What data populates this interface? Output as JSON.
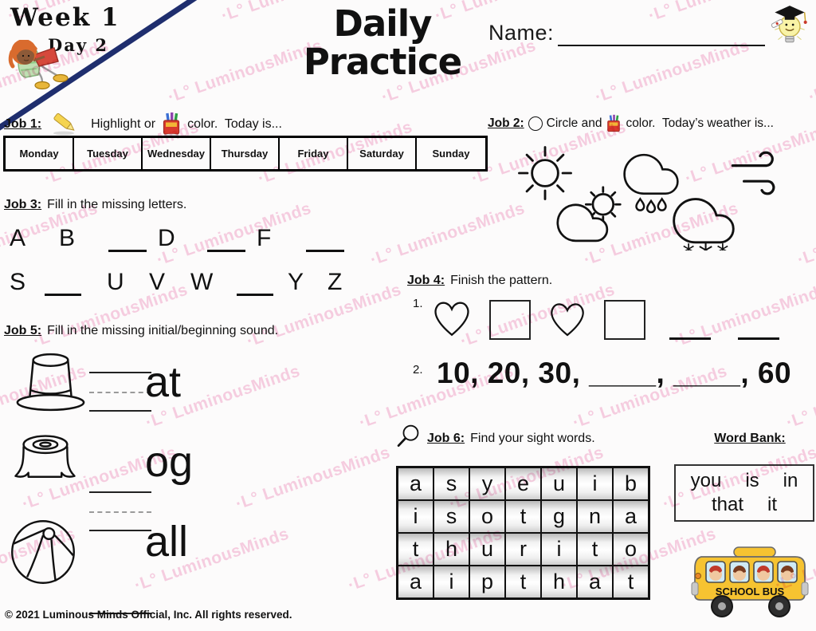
{
  "page": {
    "week": "Week 1",
    "day": "Day 2",
    "title_line1": "Daily",
    "title_line2": "Practice",
    "name_label": "Name:",
    "watermark": "·L° LuminousMinds",
    "copyright": "© 2021 Luminous Minds Official, Inc. All rights reserved."
  },
  "icons": {
    "highlighter": "highlighter-icon",
    "crayon_box": "crayon-box-icon",
    "circle": "circle-icon",
    "magnifier": "magnifying-glass-icon",
    "reading_girl": "reading-girl-illustration",
    "graduate_bulb": "graduate-lightbulb-icon",
    "school_bus": "school-bus-illustration"
  },
  "job1": {
    "label": "Job 1:",
    "text_before_icon": "Highlight or",
    "text_after_icon": "color.  Today is...",
    "days": [
      "Monday",
      "Tuesday",
      "Wednesday",
      "Thursday",
      "Friday",
      "Saturday",
      "Sunday"
    ]
  },
  "job2": {
    "label": "Job 2:",
    "text_before_icon": "Circle and",
    "text_after_icon": "color.  Today’s weather is...",
    "weather_options": [
      "sunny",
      "rainy",
      "windy",
      "partly-cloudy",
      "snowy"
    ]
  },
  "job3": {
    "label": "Job 3:",
    "text": "Fill in the missing letters.",
    "row1": [
      "A",
      "B",
      "",
      "D",
      "",
      "F",
      ""
    ],
    "row2": [
      "S",
      "",
      "U",
      "V",
      "W",
      "",
      "Y",
      "Z"
    ]
  },
  "job4": {
    "label": "Job 4:",
    "text": "Finish the pattern.",
    "item1_number": "1.",
    "item1_sequence": [
      "heart",
      "square",
      "heart",
      "square",
      "blank",
      "blank"
    ],
    "item2_number": "2.",
    "item2_text": "10, 20, 30, ____, ____, 60"
  },
  "job5": {
    "label": "Job 5:",
    "text": "Fill in the missing initial/beginning sound.",
    "items": [
      {
        "image": "top-hat",
        "suffix": "at"
      },
      {
        "image": "tree-stump",
        "suffix": "og"
      },
      {
        "image": "beach-ball",
        "suffix": "all"
      }
    ]
  },
  "job6": {
    "label": "Job 6:",
    "text": "Find your sight words.",
    "grid": [
      [
        "a",
        "s",
        "y",
        "e",
        "u",
        "i",
        "b"
      ],
      [
        "i",
        "s",
        "o",
        "t",
        "g",
        "n",
        "a"
      ],
      [
        "t",
        "h",
        "u",
        "r",
        "i",
        "t",
        "o"
      ],
      [
        "a",
        "i",
        "p",
        "t",
        "h",
        "a",
        "t"
      ]
    ]
  },
  "word_bank": {
    "title": "Word Bank:",
    "words": [
      "you",
      "is",
      "in",
      "that",
      "it"
    ]
  },
  "bus": {
    "label": "SCHOOL BUS"
  },
  "colors": {
    "watermark_pink": "#f2a9cc",
    "corner_line_navy": "#1f2e6e",
    "bus_yellow": "#f6c331"
  }
}
